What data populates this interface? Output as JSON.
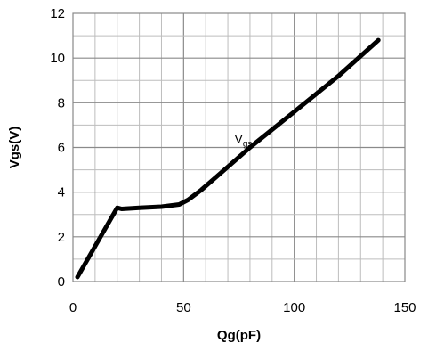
{
  "chart_data": {
    "type": "line",
    "xlabel": "Qg(pF)",
    "ylabel": "Vgs(V)",
    "xlim": [
      0,
      150
    ],
    "ylim": [
      0,
      12
    ],
    "x_ticks": [
      "0",
      "50",
      "100",
      "150"
    ],
    "y_ticks": [
      "0",
      "2",
      "4",
      "6",
      "8",
      "10",
      "12"
    ],
    "grid": true,
    "series": [
      {
        "color": "#000000",
        "x": [
          2,
          20,
          22,
          30,
          40,
          48,
          52,
          58,
          65,
          80,
          100,
          120,
          138
        ],
        "y": [
          0.2,
          3.3,
          3.25,
          3.3,
          3.35,
          3.45,
          3.65,
          4.1,
          4.7,
          6.0,
          7.6,
          9.2,
          10.8
        ]
      }
    ],
    "annotations": [
      {
        "main": "V",
        "sub": "gs",
        "x": 73,
        "y": 6.2
      }
    ]
  }
}
